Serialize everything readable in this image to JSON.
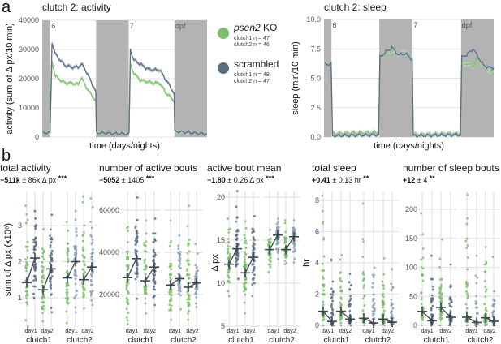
{
  "panel_labels": {
    "a": "a",
    "b": "b"
  },
  "colors": {
    "ko": "#7dbf6e",
    "ko_band": "#b9deae",
    "scrambled": "#5b6f84",
    "scrambled_light": "#8da2b6",
    "scrambled_band": "#a9b7c6",
    "night": "#b3b3b3",
    "grid": "#e3e3e3",
    "mean_cross": "#3c4650"
  },
  "legend": {
    "ko": {
      "name_italic": "psen2",
      "name_rest": " KO",
      "n1": "clutch1 n = 47",
      "n2": "clutch2 n = 46"
    },
    "scrambled": {
      "name": "scrambled",
      "n1": "clutch1 n = 48",
      "n2": "clutch2 n = 47"
    }
  },
  "chart_data": [
    {
      "type": "line",
      "title": "clutch 2: activity",
      "xlabel": "time (days/nights)",
      "ylabel": "activity (sum of Δ px/10 min)",
      "xlim": [
        0,
        50.5
      ],
      "ylim": [
        0,
        40000
      ],
      "yticks": [
        "0",
        "10000",
        "20000",
        "30000",
        "40000"
      ],
      "ytick_values": [
        0,
        10000,
        20000,
        30000,
        40000
      ],
      "nights": [
        [
          0,
          2.5
        ],
        [
          16.5,
          26.5
        ],
        [
          40.5,
          50.5
        ]
      ],
      "day_labels": [
        {
          "x": 2.8,
          "text": "6"
        },
        {
          "x": 26.8,
          "text": "7"
        },
        {
          "x": 40.8,
          "text": "dpf"
        }
      ],
      "band": 900,
      "series": [
        {
          "name": "psen2 KO",
          "points": [
            [
              0.3,
              1500
            ],
            [
              2.4,
              1500
            ],
            [
              3,
              26000
            ],
            [
              4,
              21000
            ],
            [
              5,
              20000
            ],
            [
              7,
              18500
            ],
            [
              9,
              18500
            ],
            [
              11,
              18000
            ],
            [
              12,
              20500
            ],
            [
              13,
              18000
            ],
            [
              15,
              14500
            ],
            [
              16.4,
              12500
            ],
            [
              16.6,
              1500
            ],
            [
              26.4,
              1000
            ],
            [
              26.6,
              1500
            ],
            [
              27,
              25000
            ],
            [
              28,
              22000
            ],
            [
              30,
              19500
            ],
            [
              32,
              19000
            ],
            [
              34,
              18500
            ],
            [
              36,
              18500
            ],
            [
              38,
              15000
            ],
            [
              40.4,
              12500
            ],
            [
              40.6,
              2000
            ],
            [
              50.5,
              1000
            ]
          ]
        },
        {
          "name": "scrambled",
          "points": [
            [
              0.3,
              1500
            ],
            [
              2.4,
              1500
            ],
            [
              3,
              32500
            ],
            [
              4,
              28500
            ],
            [
              5,
              27000
            ],
            [
              7,
              24500
            ],
            [
              9,
              24000
            ],
            [
              11,
              24000
            ],
            [
              12,
              25000
            ],
            [
              13,
              23500
            ],
            [
              15,
              19000
            ],
            [
              16.4,
              15500
            ],
            [
              16.6,
              1500
            ],
            [
              26.4,
              1000
            ],
            [
              26.6,
              1500
            ],
            [
              27,
              30000
            ],
            [
              28,
              26500
            ],
            [
              30,
              25000
            ],
            [
              32,
              23500
            ],
            [
              34,
              23000
            ],
            [
              36,
              23000
            ],
            [
              38,
              19500
            ],
            [
              40.4,
              15000
            ],
            [
              40.6,
              2000
            ],
            [
              50.5,
              1000
            ]
          ]
        }
      ]
    },
    {
      "type": "line",
      "title": "clutch 2: sleep",
      "xlabel": "time (days/nights)",
      "ylabel": "sleep (min/10 min)",
      "xlim": [
        0,
        50
      ],
      "ylim": [
        0,
        10
      ],
      "yticks": [
        "0.0",
        "2.5",
        "5.0",
        "7.5",
        "10.0"
      ],
      "ytick_values": [
        0,
        2.5,
        5,
        7.5,
        10
      ],
      "nights": [
        [
          0,
          2.2
        ],
        [
          16.3,
          26.1
        ],
        [
          40.4,
          50
        ]
      ],
      "day_labels": [
        {
          "x": 2.5,
          "text": "6"
        },
        {
          "x": 26.4,
          "text": "7"
        },
        {
          "x": 40.6,
          "text": "dpf"
        }
      ],
      "band": 0.25,
      "series": [
        {
          "name": "psen2 KO",
          "points": [
            [
              0.3,
              6.2
            ],
            [
              2.1,
              6.2
            ],
            [
              2.5,
              0.3
            ],
            [
              16.1,
              0.4
            ],
            [
              16.5,
              6.8
            ],
            [
              18,
              7.0
            ],
            [
              20,
              7.4
            ],
            [
              22,
              7.0
            ],
            [
              24,
              7.3
            ],
            [
              25,
              7.0
            ],
            [
              26,
              6.6
            ],
            [
              26.3,
              0.2
            ],
            [
              40.2,
              0.3
            ],
            [
              40.6,
              6.0
            ],
            [
              42,
              6.3
            ],
            [
              44,
              6.0
            ],
            [
              45,
              6.7
            ],
            [
              47,
              6.1
            ],
            [
              49,
              5.5
            ],
            [
              50,
              5.8
            ]
          ]
        },
        {
          "name": "scrambled",
          "points": [
            [
              0.3,
              6.2
            ],
            [
              2.1,
              6.2
            ],
            [
              2.5,
              0.1
            ],
            [
              16.1,
              0.2
            ],
            [
              16.5,
              6.8
            ],
            [
              18,
              7.2
            ],
            [
              20,
              7.6
            ],
            [
              22,
              7.0
            ],
            [
              24,
              7.1
            ],
            [
              26,
              6.6
            ],
            [
              26.3,
              0.1
            ],
            [
              40.2,
              0.2
            ],
            [
              40.6,
              6.8
            ],
            [
              42,
              7.0
            ],
            [
              44,
              7.5
            ],
            [
              45,
              7.0
            ],
            [
              47,
              6.1
            ],
            [
              49,
              5.9
            ],
            [
              50,
              5.9
            ]
          ]
        }
      ]
    },
    {
      "type": "scatter",
      "title": "total activity",
      "stat": {
        "bold": "−511k",
        "rest": " ± 86k Δ px ",
        "stars": "***"
      },
      "ylabel": "sum of Δ px (x10⁶)",
      "yticks": [
        "1",
        "2",
        "3"
      ],
      "ytick_values": [
        1,
        2,
        3
      ],
      "ylim": [
        0.1,
        3.9
      ],
      "groups": [
        {
          "clutch": "clutch1",
          "day": "day1",
          "ko_mean": 1.42,
          "scr_mean": 2.1,
          "ko_range": [
            0.2,
            3.55
          ],
          "scr_range": [
            1.0,
            3.4
          ]
        },
        {
          "clutch": "clutch1",
          "day": "day2",
          "ko_mean": 1.22,
          "scr_mean": 1.8,
          "ko_range": [
            0.35,
            2.9
          ],
          "scr_range": [
            0.6,
            3.3
          ]
        },
        {
          "clutch": "clutch2",
          "day": "day1",
          "ko_mean": 1.55,
          "scr_mean": 2.0,
          "ko_range": [
            0.3,
            3.1
          ],
          "scr_range": [
            0.6,
            3.4
          ]
        },
        {
          "clutch": "clutch2",
          "day": "day2",
          "ko_mean": 1.5,
          "scr_mean": 1.85,
          "ko_range": [
            0.7,
            3.8
          ],
          "scr_range": [
            0.8,
            3.75
          ]
        }
      ]
    },
    {
      "type": "scatter",
      "title": "number of active bouts",
      "stat": {
        "bold": "−5052",
        "rest": " ± 1405 ",
        "stars": "***"
      },
      "ylabel": "",
      "yticks": [
        "20000",
        "40000",
        "60000"
      ],
      "ytick_values": [
        20000,
        40000,
        60000
      ],
      "ylim": [
        3000,
        70000
      ],
      "groups": [
        {
          "clutch": "clutch1",
          "day": "day1",
          "ko_mean": 28000,
          "scr_mean": 37000,
          "ko_range": [
            6000,
            52000
          ],
          "scr_range": [
            18000,
            66000
          ]
        },
        {
          "clutch": "clutch1",
          "day": "day2",
          "ko_mean": 26500,
          "scr_mean": 33000,
          "ko_range": [
            11000,
            55000
          ],
          "scr_range": [
            15000,
            56000
          ]
        },
        {
          "clutch": "clutch2",
          "day": "day1",
          "ko_mean": 24500,
          "scr_mean": 27500,
          "ko_range": [
            8000,
            55000
          ],
          "scr_range": [
            13000,
            48000
          ]
        },
        {
          "clutch": "clutch2",
          "day": "day2",
          "ko_mean": 23500,
          "scr_mean": 25500,
          "ko_range": [
            8000,
            62000
          ],
          "scr_range": [
            14000,
            44000
          ]
        }
      ]
    },
    {
      "type": "scatter",
      "title": "active bout mean",
      "stat": {
        "bold": "−1.80",
        "rest": " ± 0.26 Δ px ",
        "stars": "***"
      },
      "ylabel": "Δ px",
      "yticks": [
        "5",
        "10",
        "15",
        "20"
      ],
      "ytick_values": [
        5,
        10,
        15,
        20
      ],
      "ylim": [
        4.5,
        21
      ],
      "groups": [
        {
          "clutch": "clutch1",
          "day": "day1",
          "ko_mean": 12.2,
          "scr_mean": 14.0,
          "ko_range": [
            8.5,
            17.5
          ],
          "scr_range": [
            10.5,
            20.7
          ]
        },
        {
          "clutch": "clutch1",
          "day": "day2",
          "ko_mean": 11.2,
          "scr_mean": 13.0,
          "ko_range": [
            6.5,
            17.2
          ],
          "scr_range": [
            8.5,
            17.8
          ]
        },
        {
          "clutch": "clutch2",
          "day": "day1",
          "ko_mean": 13.9,
          "scr_mean": 15.6,
          "ko_range": [
            11.3,
            16.2
          ],
          "scr_range": [
            12.8,
            17.5
          ]
        },
        {
          "clutch": "clutch2",
          "day": "day2",
          "ko_mean": 13.9,
          "scr_mean": 15.4,
          "ko_range": [
            12.2,
            17.3
          ],
          "scr_range": [
            12.4,
            17.3
          ]
        }
      ]
    },
    {
      "type": "scatter",
      "title": "total sleep",
      "stat": {
        "bold": "+0.41",
        "rest": " ± 0.13 hr ",
        "stars": "**"
      },
      "ylabel": "hr",
      "yticks": [
        "0",
        "2",
        "4",
        "6",
        "8"
      ],
      "ytick_values": [
        0,
        2,
        4,
        6,
        8
      ],
      "ylim": [
        0,
        8.8
      ],
      "groups": [
        {
          "clutch": "clutch1",
          "day": "day1",
          "ko_mean": 0.9,
          "scr_mean": 0.25,
          "ko_range": [
            0,
            8.3
          ],
          "scr_range": [
            0,
            4.2
          ]
        },
        {
          "clutch": "clutch1",
          "day": "day2",
          "ko_mean": 0.9,
          "scr_mean": 0.4,
          "ko_range": [
            0,
            4.5
          ],
          "scr_range": [
            0,
            3.3
          ]
        },
        {
          "clutch": "clutch2",
          "day": "day1",
          "ko_mean": 0.45,
          "scr_mean": 0.15,
          "ko_range": [
            0,
            7.8
          ],
          "scr_range": [
            0,
            3.7
          ]
        },
        {
          "clutch": "clutch2",
          "day": "day2",
          "ko_mean": 0.4,
          "scr_mean": 0.2,
          "ko_range": [
            0,
            4.3
          ],
          "scr_range": [
            0,
            3.6
          ]
        }
      ]
    },
    {
      "type": "scatter",
      "title": "number of sleep bouts",
      "stat": {
        "bold": "+12",
        "rest": " ± 4 ",
        "stars": "**"
      },
      "ylabel": "",
      "yticks": [
        "0",
        "50",
        "100",
        "150",
        "200"
      ],
      "ytick_values": [
        0,
        50,
        100,
        150,
        200
      ],
      "ylim": [
        0,
        225
      ],
      "groups": [
        {
          "clutch": "clutch1",
          "day": "day1",
          "ko_mean": 24,
          "scr_mean": 8,
          "ko_range": [
            0,
            193
          ],
          "scr_range": [
            0,
            120
          ]
        },
        {
          "clutch": "clutch1",
          "day": "day2",
          "ko_mean": 31,
          "scr_mean": 14,
          "ko_range": [
            0,
            148
          ],
          "scr_range": [
            0,
            105
          ]
        },
        {
          "clutch": "clutch2",
          "day": "day1",
          "ko_mean": 14,
          "scr_mean": 5,
          "ko_range": [
            0,
            225
          ],
          "scr_range": [
            0,
            120
          ]
        },
        {
          "clutch": "clutch2",
          "day": "day2",
          "ko_mean": 13,
          "scr_mean": 7,
          "ko_range": [
            0,
            135
          ],
          "scr_range": [
            0,
            118
          ]
        }
      ]
    }
  ]
}
